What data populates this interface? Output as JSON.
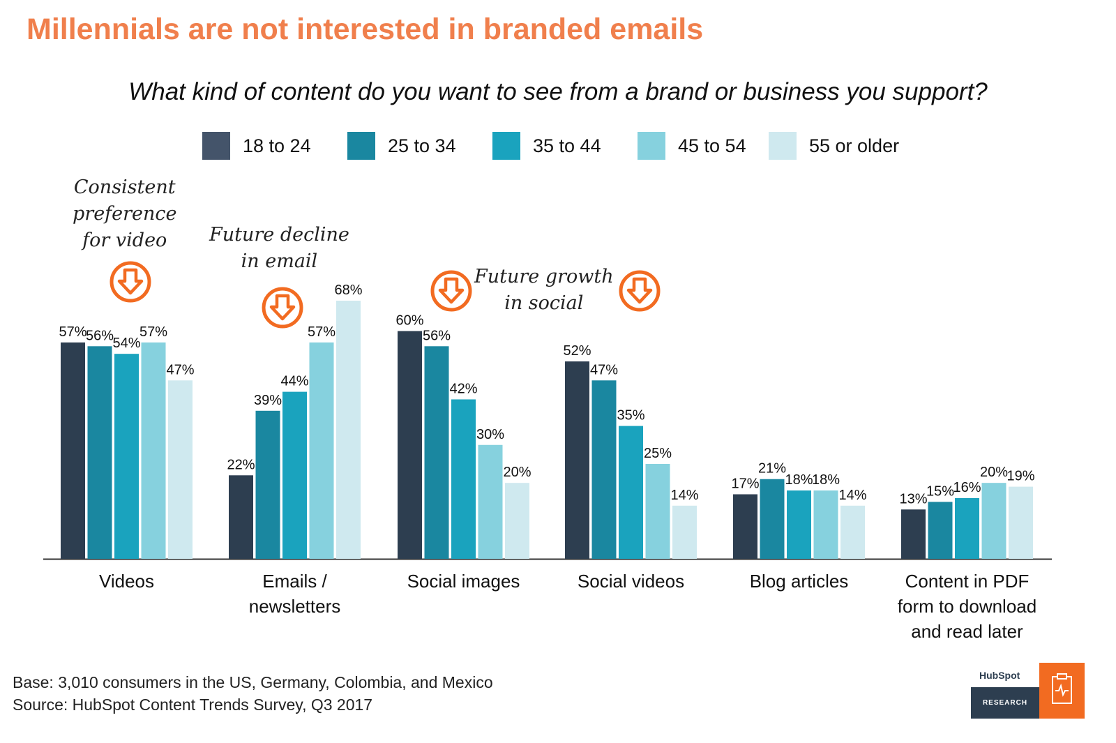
{
  "title": "Millennials are not interested in branded emails",
  "question": "What kind of content do you want to see from a brand or business you support?",
  "legend": [
    {
      "label": "18 to 24",
      "color": "#44546a"
    },
    {
      "label": "25 to 34",
      "color": "#1a87a0"
    },
    {
      "label": "35 to 44",
      "color": "#1aa3be"
    },
    {
      "label": "45 to 54",
      "color": "#86d1de"
    },
    {
      "label": "55 or older",
      "color": "#cfe9ef"
    }
  ],
  "annotations": [
    {
      "text": "Consistent\npreference\nfor video"
    },
    {
      "text": "Future decline\nin email"
    },
    {
      "text": "Future growth\nin social"
    }
  ],
  "icons": [
    "arrow-down-circle-icon"
  ],
  "footer": {
    "base": "Base: 3,010 consumers in the US, Germany, Colombia, and Mexico",
    "source": "Source: HubSpot Content Trends Survey, Q3 2017"
  },
  "logo": {
    "wordmark": "HubSpot",
    "research": "RESEARCH"
  },
  "chart_data": {
    "type": "bar",
    "title": "What kind of content do you want to see from a brand or business you support?",
    "categories": [
      "Videos",
      "Emails /\nnewsletters",
      "Social images",
      "Social videos",
      "Blog articles",
      "Content in PDF\nform to download\nand read later"
    ],
    "series": [
      {
        "name": "18 to 24",
        "color": "#2d3e50",
        "values": [
          57,
          22,
          60,
          52,
          17,
          13
        ]
      },
      {
        "name": "25 to 34",
        "color": "#1a87a0",
        "values": [
          56,
          39,
          56,
          47,
          21,
          15
        ]
      },
      {
        "name": "35 to 44",
        "color": "#1aa3be",
        "values": [
          54,
          44,
          42,
          35,
          18,
          16
        ]
      },
      {
        "name": "45 to 54",
        "color": "#86d1de",
        "values": [
          57,
          57,
          30,
          25,
          18,
          20
        ]
      },
      {
        "name": "55 or older",
        "color": "#cfe9ef",
        "values": [
          47,
          68,
          20,
          14,
          14,
          19
        ]
      }
    ],
    "ylim": [
      0,
      68
    ],
    "value_suffix": "%",
    "grid": false,
    "legend_position": "top"
  }
}
